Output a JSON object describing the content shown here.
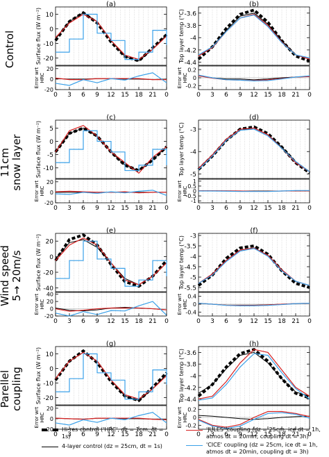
{
  "row_titles": [
    "Control",
    "11cm\nsnow layer",
    "Wind speed\n5→ 20m/s",
    "Parellel\ncoupling"
  ],
  "colors": {
    "hires": "#000000",
    "four_layer": "#000000",
    "jules": "#d62020",
    "cice": "#3aa0e8"
  },
  "legend": [
    {
      "key": "hires",
      "style": "dashed-thick",
      "text": "Hi-res control ('HRC', dz = 1cm, dt = 1s)"
    },
    {
      "key": "four_layer",
      "style": "solid-thin",
      "text": "4-layer control (dz = 25cm, dt = 1s)"
    },
    {
      "key": "jules",
      "style": "solid",
      "text": "'JULES' coupling (dz = 25cm, ice dt = 1h,\natmos dt = 20min, coupling dt = 3h)"
    },
    {
      "key": "cice",
      "style": "solid",
      "text": "'CICE' coupling (dz = 25cm, ice dt = 1h,\natmos dt = 20min, coupling dt = 3h)"
    }
  ],
  "chart_data": [
    {
      "type": "line",
      "panel": "(a)",
      "ylabel": "Surface flux (W m⁻²)",
      "err_label": "Error wrt HRC",
      "x": [
        0,
        3,
        6,
        9,
        12,
        15,
        18,
        21,
        24
      ],
      "xticks": [
        "0",
        "3",
        "6",
        "9",
        "12",
        "15",
        "18",
        "21",
        "0"
      ],
      "ylim": [
        -25,
        15
      ],
      "yticks": [
        -20,
        -10,
        0,
        10
      ],
      "err_ylim": [
        -20,
        25
      ],
      "err_yticks": [
        -20,
        0,
        20
      ],
      "series": [
        {
          "key": "hires",
          "values": [
            -8,
            5,
            11,
            4,
            -9,
            -19,
            -22,
            -13,
            -4
          ]
        },
        {
          "key": "four_layer",
          "values": [
            -7,
            5,
            11,
            5,
            -8,
            -19,
            -22,
            -14,
            -4
          ]
        },
        {
          "key": "jules",
          "values": [
            -6,
            4,
            10,
            5,
            -8,
            -18,
            -21,
            -14,
            -5
          ]
        },
        {
          "key": "cice",
          "step": true,
          "values": [
            -16,
            -7,
            10,
            -3,
            -8,
            -21,
            -16,
            -1,
            -11
          ]
        }
      ],
      "errors": [
        {
          "key": "four_layer",
          "values": [
            1,
            0,
            0,
            1,
            1,
            0,
            0,
            -1,
            0
          ]
        },
        {
          "key": "jules",
          "values": [
            2,
            -1,
            -1,
            1,
            1,
            1,
            1,
            -1,
            -1
          ]
        },
        {
          "key": "cice",
          "values": [
            -8,
            -12,
            -1,
            -7,
            1,
            -2,
            6,
            12,
            -7
          ]
        }
      ]
    },
    {
      "type": "line",
      "panel": "(b)",
      "ylabel": "Top layer temp (°C)",
      "err_label": "Error wrt HRC",
      "x": [
        0,
        3,
        6,
        9,
        12,
        15,
        18,
        21,
        24
      ],
      "xticks": [
        "0",
        "3",
        "6",
        "9",
        "12",
        "15",
        "18",
        "21",
        "0"
      ],
      "ylim": [
        -4.45,
        -3.5
      ],
      "yticks": [
        -4.4,
        -4.2,
        -4.0,
        -3.8,
        -3.6
      ],
      "err_ylim": [
        -0.3,
        0.3
      ],
      "err_yticks": [
        -0.2,
        0.0,
        0.2
      ],
      "series": [
        {
          "key": "hires",
          "values": [
            -4.35,
            -4.15,
            -3.85,
            -3.62,
            -3.55,
            -3.75,
            -4.05,
            -4.3,
            -4.38
          ]
        },
        {
          "key": "four_layer",
          "values": [
            -4.3,
            -4.15,
            -3.88,
            -3.65,
            -3.6,
            -3.78,
            -4.05,
            -4.28,
            -4.35
          ]
        },
        {
          "key": "jules",
          "values": [
            -4.3,
            -4.16,
            -3.9,
            -3.68,
            -3.62,
            -3.8,
            -4.07,
            -4.28,
            -4.35
          ]
        },
        {
          "key": "cice",
          "values": [
            -4.28,
            -4.15,
            -3.9,
            -3.68,
            -3.63,
            -3.82,
            -4.08,
            -4.28,
            -4.33
          ]
        }
      ],
      "errors": [
        {
          "key": "four_layer",
          "values": [
            0.05,
            0,
            -0.03,
            -0.03,
            -0.05,
            -0.03,
            0,
            0.02,
            0.03
          ]
        },
        {
          "key": "jules",
          "values": [
            0.05,
            -0.01,
            -0.05,
            -0.06,
            -0.07,
            -0.05,
            -0.02,
            0.02,
            0.03
          ]
        },
        {
          "key": "cice",
          "values": [
            0.07,
            0,
            -0.05,
            -0.06,
            -0.08,
            -0.07,
            -0.03,
            0.02,
            0.05
          ]
        }
      ]
    },
    {
      "type": "line",
      "panel": "(c)",
      "ylabel": "Surface flux (W m⁻²)",
      "err_label": "Error wrt HRC",
      "x": [
        0,
        3,
        6,
        9,
        12,
        15,
        18,
        21,
        24
      ],
      "xticks": [
        "0",
        "3",
        "6",
        "9",
        "12",
        "15",
        "18",
        "21",
        "0"
      ],
      "ylim": [
        -14,
        8
      ],
      "yticks": [
        -10,
        -5,
        0,
        5
      ],
      "err_ylim": [
        -20,
        25
      ],
      "err_yticks": [
        -20,
        0,
        20
      ],
      "series": [
        {
          "key": "hires",
          "values": [
            -4,
            3,
            5,
            2,
            -4,
            -9,
            -11,
            -7,
            -2
          ]
        },
        {
          "key": "four_layer",
          "values": [
            -4,
            3,
            5,
            2,
            -4,
            -9,
            -11,
            -7,
            -2
          ]
        },
        {
          "key": "jules",
          "values": [
            -4,
            4,
            6,
            2,
            -4,
            -8,
            -12,
            -6,
            -2
          ]
        },
        {
          "key": "cice",
          "step": true,
          "values": [
            -8,
            -3,
            4,
            0,
            -4,
            -11,
            -9,
            -3,
            -9
          ]
        }
      ],
      "errors": [
        {
          "key": "four_layer",
          "values": [
            0,
            0,
            0,
            0,
            0,
            0,
            0,
            0,
            0
          ]
        },
        {
          "key": "jules",
          "values": [
            1,
            2,
            1,
            0,
            0,
            1,
            -1,
            0,
            0
          ]
        },
        {
          "key": "cice",
          "values": [
            -3,
            -4,
            0,
            -2,
            1,
            -1,
            2,
            4,
            -6
          ]
        }
      ]
    },
    {
      "type": "line",
      "panel": "(d)",
      "ylabel": "Top layer temp (°C)",
      "err_label": "Error wrt HRC",
      "x": [
        0,
        3,
        6,
        9,
        12,
        15,
        18,
        21,
        24
      ],
      "xticks": [
        "0",
        "3",
        "6",
        "9",
        "12",
        "15",
        "18",
        "21",
        "0"
      ],
      "ylim": [
        -5.2,
        -2.6
      ],
      "yticks": [
        -5,
        -4,
        -3
      ],
      "err_ylim": [
        -1.2,
        1.2
      ],
      "err_yticks": [
        -1.0,
        -0.5,
        0.0,
        0.5,
        1.0
      ],
      "series": [
        {
          "key": "hires",
          "values": [
            -4.8,
            -4.2,
            -3.5,
            -3.0,
            -2.9,
            -3.2,
            -3.8,
            -4.5,
            -4.95
          ]
        },
        {
          "key": "four_layer",
          "values": [
            -4.75,
            -4.2,
            -3.5,
            -3.05,
            -2.95,
            -3.25,
            -3.8,
            -4.45,
            -4.9
          ]
        },
        {
          "key": "jules",
          "values": [
            -4.75,
            -4.15,
            -3.45,
            -3.0,
            -2.95,
            -3.25,
            -3.85,
            -4.5,
            -4.9
          ]
        },
        {
          "key": "cice",
          "values": [
            -4.8,
            -4.2,
            -3.5,
            -3.05,
            -3.0,
            -3.3,
            -3.85,
            -4.45,
            -4.9
          ]
        }
      ],
      "errors": [
        {
          "key": "four_layer",
          "values": [
            0,
            0,
            0,
            0,
            0,
            0,
            0,
            0,
            0
          ]
        },
        {
          "key": "jules",
          "values": [
            0.03,
            0.03,
            0.02,
            0,
            -0.03,
            -0.03,
            0,
            0.02,
            0.02
          ]
        },
        {
          "key": "cice",
          "values": [
            0,
            0,
            -0.02,
            -0.05,
            -0.05,
            -0.05,
            0,
            0.05,
            0.05
          ]
        }
      ]
    },
    {
      "type": "line",
      "panel": "(e)",
      "ylabel": "Surface flux (W m⁻²)",
      "err_label": "Error wrt HRC",
      "x": [
        0,
        3,
        6,
        9,
        12,
        15,
        18,
        21,
        24
      ],
      "xticks": [
        "0",
        "3",
        "6",
        "9",
        "12",
        "15",
        "18",
        "21",
        "0"
      ],
      "ylim": [
        -45,
        30
      ],
      "yticks": [
        -40,
        -20,
        0,
        20
      ],
      "err_ylim": [
        -20,
        45
      ],
      "err_yticks": [
        -20,
        0,
        20,
        40
      ],
      "series": [
        {
          "key": "hires",
          "values": [
            -5,
            22,
            28,
            15,
            -10,
            -32,
            -38,
            -25,
            -5
          ]
        },
        {
          "key": "four_layer",
          "values": [
            -3,
            18,
            22,
            12,
            -8,
            -28,
            -36,
            -25,
            -8
          ]
        },
        {
          "key": "jules",
          "values": [
            -5,
            15,
            24,
            15,
            -8,
            -30,
            -36,
            -25,
            -8
          ]
        },
        {
          "key": "cice",
          "step": true,
          "values": [
            -28,
            -5,
            20,
            -3,
            -15,
            -38,
            -30,
            -5,
            -25
          ]
        }
      ],
      "errors": [
        {
          "key": "four_layer",
          "values": [
            2,
            -4,
            -6,
            -3,
            2,
            4,
            2,
            0,
            -3
          ]
        },
        {
          "key": "jules",
          "values": [
            0,
            -7,
            -4,
            0,
            2,
            2,
            2,
            0,
            -3
          ]
        },
        {
          "key": "cice",
          "values": [
            -12,
            -20,
            -8,
            -16,
            -5,
            -6,
            8,
            20,
            -18
          ]
        }
      ]
    },
    {
      "type": "line",
      "panel": "(f)",
      "ylabel": "Top layer temp (°C)",
      "err_label": "Error wrt HRC",
      "x": [
        0,
        3,
        6,
        9,
        12,
        15,
        18,
        21,
        24
      ],
      "xticks": [
        "0",
        "3",
        "6",
        "9",
        "12",
        "15",
        "18",
        "21",
        "0"
      ],
      "ylim": [
        -5.7,
        -2.9
      ],
      "yticks": [
        -5.5,
        -5.0,
        -4.5,
        -4.0,
        -3.5,
        -3.0
      ],
      "err_ylim": [
        -0.6,
        0.6
      ],
      "err_yticks": [
        -0.4,
        0.0,
        0.4
      ],
      "series": [
        {
          "key": "hires",
          "values": [
            -5.4,
            -4.9,
            -4.1,
            -3.6,
            -3.5,
            -3.9,
            -4.7,
            -5.3,
            -5.5
          ]
        },
        {
          "key": "four_layer",
          "values": [
            -5.3,
            -4.85,
            -4.2,
            -3.7,
            -3.6,
            -3.95,
            -4.65,
            -5.2,
            -5.4
          ]
        },
        {
          "key": "jules",
          "values": [
            -5.3,
            -4.85,
            -4.2,
            -3.7,
            -3.6,
            -3.95,
            -4.65,
            -5.2,
            -5.4
          ]
        },
        {
          "key": "cice",
          "values": [
            -5.3,
            -4.9,
            -4.25,
            -3.75,
            -3.62,
            -4.0,
            -4.7,
            -5.2,
            -5.4
          ]
        }
      ],
      "errors": [
        {
          "key": "four_layer",
          "values": [
            0.05,
            0,
            -0.05,
            -0.05,
            -0.05,
            -0.03,
            0,
            0.03,
            0.05
          ]
        },
        {
          "key": "jules",
          "values": [
            0.05,
            0,
            -0.05,
            -0.06,
            -0.06,
            -0.04,
            0,
            0.03,
            0.05
          ]
        },
        {
          "key": "cice",
          "values": [
            0.05,
            0,
            -0.06,
            -0.08,
            -0.08,
            -0.06,
            -0.02,
            0.03,
            0.05
          ]
        }
      ]
    },
    {
      "type": "line",
      "panel": "(g)",
      "ylabel": "Surface flux (W m⁻²)",
      "err_label": "Error wrt HRC",
      "x": [
        0,
        3,
        6,
        9,
        12,
        15,
        18,
        21,
        24
      ],
      "xticks": [
        "0",
        "3",
        "6",
        "9",
        "12",
        "15",
        "18",
        "21",
        "0"
      ],
      "ylim": [
        -25,
        15
      ],
      "yticks": [
        -20,
        -10,
        0,
        10
      ],
      "err_ylim": [
        -20,
        25
      ],
      "err_yticks": [
        -20,
        0,
        20
      ],
      "series": [
        {
          "key": "hires",
          "values": [
            -8,
            5,
            12,
            4,
            -9,
            -19,
            -22,
            -13,
            -3
          ]
        },
        {
          "key": "four_layer",
          "values": [
            -7,
            5,
            11,
            5,
            -8,
            -19,
            -22,
            -14,
            -4
          ]
        },
        {
          "key": "jules",
          "values": [
            -7,
            5,
            11,
            5,
            -8,
            -18,
            -21,
            -14,
            -5
          ]
        },
        {
          "key": "cice",
          "step": true,
          "values": [
            -16,
            -7,
            10,
            -3,
            -8,
            -21,
            -16,
            -1,
            -11
          ]
        }
      ],
      "errors": [
        {
          "key": "four_layer",
          "values": [
            1,
            0,
            -1,
            1,
            1,
            0,
            0,
            -1,
            -1
          ]
        },
        {
          "key": "jules",
          "values": [
            1,
            0,
            -1,
            1,
            1,
            1,
            1,
            -1,
            -2
          ]
        },
        {
          "key": "cice",
          "values": [
            -8,
            -12,
            -2,
            -7,
            1,
            -2,
            6,
            12,
            -8
          ]
        }
      ]
    },
    {
      "type": "line",
      "panel": "(h)",
      "ylabel": "Top layer temp (°C)",
      "err_label": "Error wrt HRC",
      "x": [
        0,
        3,
        6,
        9,
        12,
        15,
        18,
        21,
        24
      ],
      "xticks": [
        "0",
        "3",
        "6",
        "9",
        "12",
        "15",
        "18",
        "21",
        "0"
      ],
      "ylim": [
        -4.5,
        -3.5
      ],
      "yticks": [
        -4.4,
        -4.2,
        -4.0,
        -3.8,
        -3.6
      ],
      "err_ylim": [
        -0.3,
        0.3
      ],
      "err_yticks": [
        -0.2,
        0.0,
        0.2
      ],
      "series": [
        {
          "key": "hires",
          "values": [
            -4.35,
            -4.15,
            -3.85,
            -3.62,
            -3.55,
            -3.75,
            -4.05,
            -4.3,
            -4.38
          ]
        },
        {
          "key": "four_layer",
          "values": [
            -4.3,
            -4.15,
            -3.88,
            -3.65,
            -3.6,
            -3.78,
            -4.05,
            -4.28,
            -4.35
          ]
        },
        {
          "key": "jules",
          "values": [
            -4.4,
            -4.35,
            -4.1,
            -3.78,
            -3.55,
            -3.6,
            -3.9,
            -4.2,
            -4.35
          ]
        },
        {
          "key": "cice",
          "values": [
            -4.42,
            -4.38,
            -4.15,
            -3.85,
            -3.62,
            -3.65,
            -3.95,
            -4.22,
            -4.4
          ]
        }
      ],
      "errors": [
        {
          "key": "four_layer",
          "values": [
            0.05,
            0.03,
            0,
            -0.03,
            -0.05,
            -0.03,
            0,
            0.02,
            0.03
          ]
        },
        {
          "key": "jules",
          "values": [
            -0.05,
            -0.2,
            -0.25,
            -0.18,
            0,
            0.15,
            0.15,
            0.1,
            0.02
          ]
        },
        {
          "key": "cice",
          "values": [
            -0.07,
            -0.22,
            -0.28,
            -0.22,
            -0.05,
            0.1,
            0.12,
            0.08,
            -0.02
          ]
        }
      ]
    }
  ]
}
